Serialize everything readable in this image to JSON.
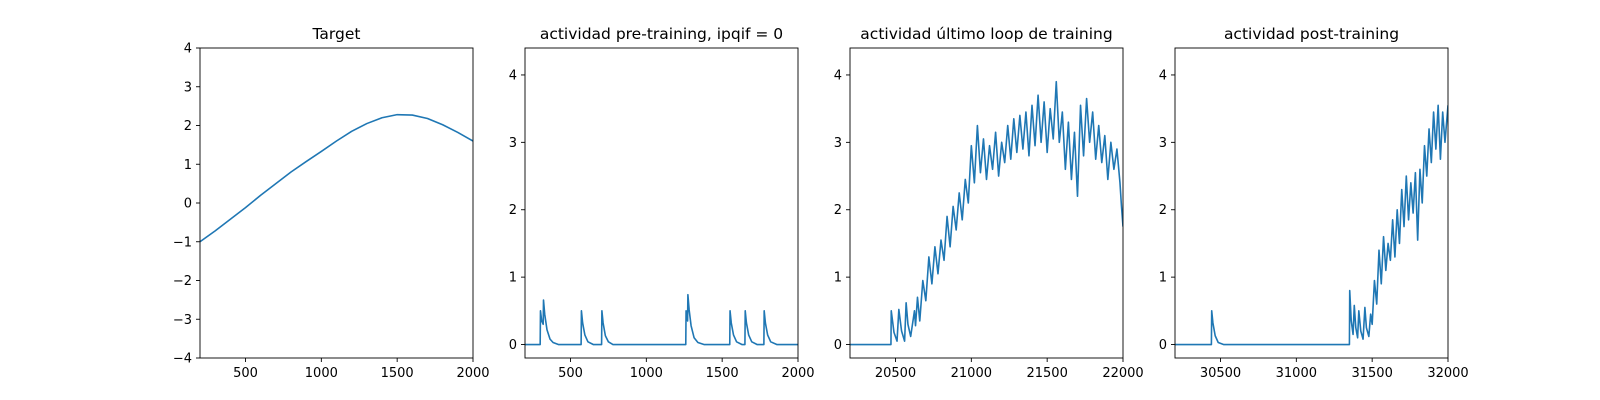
{
  "chart_data": [
    {
      "type": "line",
      "title": "Target",
      "xlim": [
        200,
        2000
      ],
      "ylim": [
        -4,
        4
      ],
      "xticks": [
        500,
        1000,
        1500,
        2000
      ],
      "xtick_labels": [
        "500",
        "1000",
        "1500",
        "2000"
      ],
      "yticks": [
        -4,
        -3,
        -2,
        -1,
        0,
        1,
        2,
        3,
        4
      ],
      "ytick_labels": [
        "−4",
        "−3",
        "−2",
        "−1",
        "0",
        "1",
        "2",
        "3",
        "4"
      ],
      "series": [
        {
          "color": "#1f77b4",
          "x": [
            200,
            300,
            400,
            500,
            600,
            700,
            800,
            900,
            1000,
            1100,
            1200,
            1300,
            1400,
            1500,
            1600,
            1700,
            1800,
            1900,
            2000
          ],
          "y": [
            -1.0,
            -0.72,
            -0.42,
            -0.12,
            0.2,
            0.5,
            0.8,
            1.07,
            1.33,
            1.6,
            1.85,
            2.05,
            2.2,
            2.28,
            2.27,
            2.18,
            2.02,
            1.82,
            1.6
          ]
        }
      ]
    },
    {
      "type": "line",
      "title": "actividad pre-training, ipqif = 0",
      "xlim": [
        200,
        2000
      ],
      "ylim": [
        -0.2,
        4.4
      ],
      "xticks": [
        500,
        1000,
        1500,
        2000
      ],
      "xtick_labels": [
        "500",
        "1000",
        "1500",
        "2000"
      ],
      "yticks": [
        0,
        1,
        2,
        3,
        4
      ],
      "ytick_labels": [
        "0",
        "1",
        "2",
        "3",
        "4"
      ],
      "series": [
        {
          "color": "#1f77b4",
          "x": [
            200,
            300,
            302,
            310,
            320,
            322,
            330,
            345,
            365,
            385,
            420,
            570,
            572,
            580,
            595,
            615,
            650,
            705,
            707,
            715,
            730,
            750,
            780,
            1260,
            1262,
            1268,
            1272,
            1274,
            1282,
            1295,
            1315,
            1340,
            1380,
            1550,
            1552,
            1560,
            1575,
            1595,
            1630,
            1650,
            1652,
            1660,
            1675,
            1695,
            1730,
            1775,
            1777,
            1785,
            1800,
            1820,
            1860,
            2000
          ],
          "y": [
            0.0,
            0.0,
            0.5,
            0.35,
            0.3,
            0.66,
            0.45,
            0.22,
            0.08,
            0.03,
            0.0,
            0.0,
            0.5,
            0.32,
            0.14,
            0.04,
            0.0,
            0.0,
            0.5,
            0.32,
            0.13,
            0.04,
            0.0,
            0.0,
            0.5,
            0.38,
            0.35,
            0.74,
            0.52,
            0.28,
            0.1,
            0.03,
            0.0,
            0.0,
            0.5,
            0.32,
            0.14,
            0.04,
            0.0,
            0.0,
            0.5,
            0.32,
            0.14,
            0.04,
            0.0,
            0.0,
            0.5,
            0.32,
            0.14,
            0.04,
            0.0,
            0.0
          ]
        }
      ]
    },
    {
      "type": "line",
      "title": "actividad último loop de training",
      "xlim": [
        20200,
        22000
      ],
      "ylim": [
        -0.2,
        4.4
      ],
      "xticks": [
        20500,
        21000,
        21500,
        22000
      ],
      "xtick_labels": [
        "20500",
        "21000",
        "21500",
        "22000"
      ],
      "yticks": [
        0,
        1,
        2,
        3,
        4
      ],
      "ytick_labels": [
        "0",
        "1",
        "2",
        "3",
        "4"
      ],
      "series": [
        {
          "color": "#1f77b4",
          "x": [
            20200,
            20470,
            20472,
            20490,
            20510,
            20522,
            20540,
            20560,
            20570,
            20582,
            20600,
            20625,
            20632,
            20645,
            20660,
            20680,
            20700,
            20720,
            20740,
            20760,
            20780,
            20800,
            20820,
            20840,
            20860,
            20880,
            20900,
            20920,
            20940,
            20960,
            20980,
            21000,
            21020,
            21040,
            21060,
            21080,
            21100,
            21120,
            21140,
            21160,
            21180,
            21200,
            21220,
            21240,
            21260,
            21280,
            21300,
            21320,
            21340,
            21360,
            21380,
            21400,
            21420,
            21440,
            21460,
            21480,
            21500,
            21520,
            21540,
            21560,
            21580,
            21600,
            21620,
            21640,
            21660,
            21680,
            21700,
            21720,
            21740,
            21760,
            21780,
            21800,
            21820,
            21840,
            21860,
            21880,
            21900,
            21920,
            21940,
            21960,
            21980,
            21990,
            22000
          ],
          "y": [
            0.0,
            0.0,
            0.5,
            0.18,
            0.05,
            0.52,
            0.2,
            0.05,
            0.62,
            0.3,
            0.12,
            0.5,
            0.28,
            0.7,
            0.35,
            0.95,
            0.65,
            1.3,
            0.9,
            1.45,
            1.05,
            1.55,
            1.25,
            1.9,
            1.45,
            2.05,
            1.7,
            2.25,
            1.85,
            2.45,
            2.1,
            2.95,
            2.4,
            3.25,
            2.55,
            3.05,
            2.45,
            2.95,
            2.6,
            3.15,
            2.5,
            3.0,
            2.7,
            3.25,
            2.75,
            3.35,
            2.85,
            3.4,
            2.9,
            3.45,
            2.8,
            3.55,
            2.95,
            3.7,
            3.0,
            3.6,
            2.85,
            3.5,
            3.05,
            3.9,
            3.0,
            3.45,
            2.6,
            3.3,
            2.45,
            3.15,
            2.2,
            3.55,
            2.8,
            3.65,
            3.0,
            3.45,
            2.75,
            3.25,
            2.7,
            3.1,
            2.45,
            3.0,
            2.6,
            2.9,
            2.4,
            2.05,
            1.75
          ]
        }
      ]
    },
    {
      "type": "line",
      "title": "actividad post-training",
      "xlim": [
        30200,
        32000
      ],
      "ylim": [
        -0.2,
        4.4
      ],
      "xticks": [
        30500,
        31000,
        31500,
        32000
      ],
      "xtick_labels": [
        "30500",
        "31000",
        "31500",
        "32000"
      ],
      "yticks": [
        0,
        1,
        2,
        3,
        4
      ],
      "ytick_labels": [
        "0",
        "1",
        "2",
        "3",
        "4"
      ],
      "series": [
        {
          "color": "#1f77b4",
          "x": [
            30200,
            30440,
            30442,
            30450,
            30465,
            30485,
            30520,
            31350,
            31352,
            31362,
            31374,
            31382,
            31392,
            31404,
            31412,
            31425,
            31440,
            31452,
            31462,
            31478,
            31490,
            31500,
            31515,
            31530,
            31545,
            31560,
            31575,
            31590,
            31605,
            31620,
            31635,
            31650,
            31665,
            31680,
            31695,
            31710,
            31725,
            31740,
            31755,
            31770,
            31785,
            31800,
            31815,
            31830,
            31845,
            31860,
            31875,
            31890,
            31905,
            31920,
            31935,
            31950,
            31965,
            31980,
            32000
          ],
          "y": [
            0.0,
            0.0,
            0.5,
            0.32,
            0.13,
            0.03,
            0.0,
            0.0,
            0.8,
            0.35,
            0.15,
            0.58,
            0.25,
            0.1,
            0.5,
            0.2,
            0.08,
            0.55,
            0.25,
            0.12,
            0.45,
            0.3,
            0.95,
            0.6,
            1.4,
            0.9,
            1.6,
            1.1,
            1.5,
            1.25,
            1.85,
            1.3,
            2.0,
            1.5,
            2.3,
            1.75,
            2.5,
            1.85,
            2.4,
            1.95,
            2.55,
            1.55,
            2.6,
            2.1,
            2.95,
            2.5,
            3.2,
            2.7,
            3.45,
            2.9,
            3.55,
            2.75,
            3.45,
            3.0,
            3.55
          ]
        }
      ]
    }
  ]
}
